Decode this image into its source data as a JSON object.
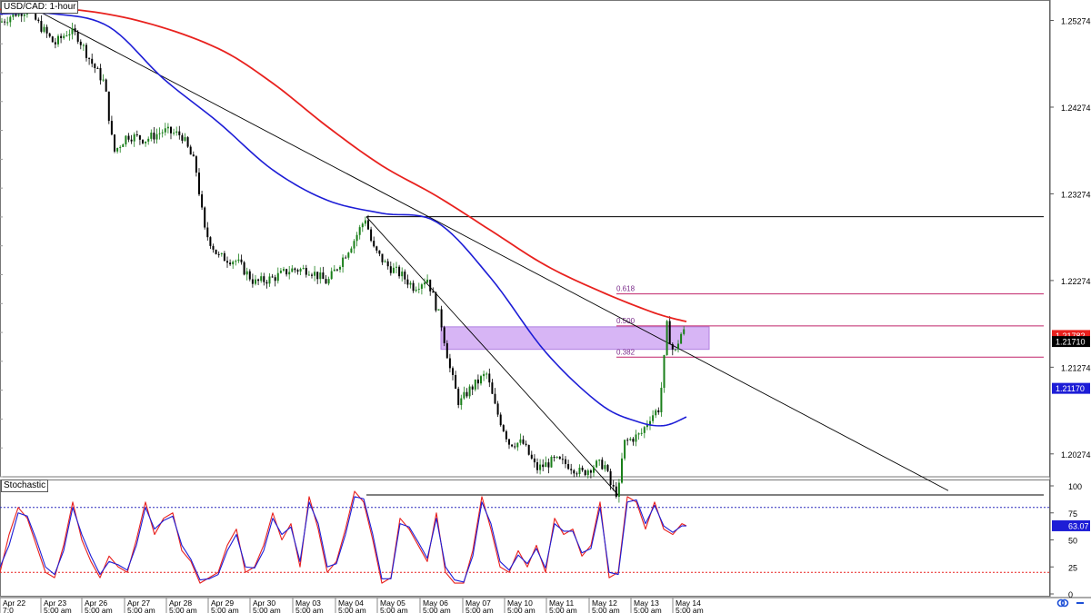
{
  "chart_title": "USD/CAD: 1-hour",
  "oscillator_title": "Stochastic",
  "colors": {
    "bull_candle": "#1a7f1a",
    "bear_candle": "#000000",
    "ma_fast": "#1d1dd6",
    "ma_slow": "#e8211e",
    "zone_fill": "#c99cf2",
    "fib_line": "#c0246a",
    "fib_label": "#7a2b8a",
    "stoch_k": "#e8211e",
    "stoch_d": "#1d1dd6",
    "upper_level": "#2b2bbd",
    "lower_level": "#e8211e"
  },
  "chart_data": [
    {
      "type": "candlestick",
      "title": "USD/CAD: 1-hour",
      "price_axis_ticks": [
        "1.25274",
        "1.24274",
        "1.23274",
        "1.22274",
        "1.21274",
        "1.20274"
      ],
      "ylim": [
        1.2001,
        1.2551
      ],
      "x_date_labels": [
        "Apr 22",
        "Apr 23",
        "Apr 26",
        "Apr 27",
        "Apr 28",
        "Apr 29",
        "Apr 30",
        "May 03",
        "May 04",
        "May 05",
        "May 06",
        "May 07",
        "May 10",
        "May 11",
        "May 12",
        "May 13",
        "May 14"
      ],
      "x_time_labels": [
        "7:0",
        "5:00 am",
        "5:00 am",
        "5:00 am",
        "5:00 am",
        "5:00 am",
        "5:00 am",
        "5:00 am",
        "5:00 am",
        "5:00 am",
        "5:00 am",
        "5:00 am",
        "5:00 am",
        "5:00 am",
        "5:00 am",
        "5:00 am",
        "5:00 am"
      ],
      "price_path": [
        [
          0,
          1.2525
        ],
        [
          15,
          1.2535
        ],
        [
          30,
          1.254
        ],
        [
          45,
          1.252
        ],
        [
          60,
          1.25
        ],
        [
          75,
          1.2515
        ],
        [
          85,
          1.251
        ],
        [
          100,
          1.248
        ],
        [
          115,
          1.2455
        ],
        [
          125,
          1.2375
        ],
        [
          140,
          1.2395
        ],
        [
          160,
          1.239
        ],
        [
          180,
          1.24
        ],
        [
          200,
          1.2395
        ],
        [
          215,
          1.236
        ],
        [
          225,
          1.2285
        ],
        [
          240,
          1.2255
        ],
        [
          260,
          1.225
        ],
        [
          280,
          1.2225
        ],
        [
          300,
          1.223
        ],
        [
          320,
          1.224
        ],
        [
          340,
          1.224
        ],
        [
          360,
          1.2225
        ],
        [
          375,
          1.225
        ],
        [
          390,
          1.2275
        ],
        [
          402,
          1.23
        ],
        [
          410,
          1.2265
        ],
        [
          425,
          1.2245
        ],
        [
          440,
          1.2235
        ],
        [
          455,
          1.222
        ],
        [
          470,
          1.223
        ],
        [
          485,
          1.218
        ],
        [
          495,
          1.2125
        ],
        [
          505,
          1.2085
        ],
        [
          515,
          1.21
        ],
        [
          525,
          1.211
        ],
        [
          535,
          1.212
        ],
        [
          545,
          1.208
        ],
        [
          560,
          1.204
        ],
        [
          575,
          1.204
        ],
        [
          590,
          1.201
        ],
        [
          610,
          1.202
        ],
        [
          625,
          1.2015
        ],
        [
          640,
          1.2005
        ],
        [
          655,
          1.2015
        ],
        [
          665,
          1.2015
        ],
        [
          672,
          1.199
        ],
        [
          680,
          1.198
        ],
        [
          686,
          1.204
        ],
        [
          695,
          1.2045
        ],
        [
          705,
          1.205
        ],
        [
          715,
          1.207
        ],
        [
          725,
          1.208
        ],
        [
          730,
          1.213
        ],
        [
          734,
          1.218
        ],
        [
          738,
          1.215
        ],
        [
          743,
          1.2145
        ],
        [
          748,
          1.2165
        ],
        [
          755,
          1.217
        ]
      ],
      "ma_fast_path": [
        [
          0,
          1.2535
        ],
        [
          60,
          1.2535
        ],
        [
          120,
          1.252
        ],
        [
          180,
          1.246
        ],
        [
          240,
          1.241
        ],
        [
          300,
          1.2355
        ],
        [
          360,
          1.232
        ],
        [
          420,
          1.2305
        ],
        [
          480,
          1.2295
        ],
        [
          540,
          1.223
        ],
        [
          600,
          1.2145
        ],
        [
          660,
          1.2085
        ],
        [
          700,
          1.2065
        ],
        [
          730,
          1.206
        ],
        [
          755,
          1.207
        ]
      ],
      "ma_slow_path": [
        [
          0,
          1.254
        ],
        [
          80,
          1.254
        ],
        [
          160,
          1.2525
        ],
        [
          240,
          1.2495
        ],
        [
          300,
          1.2455
        ],
        [
          360,
          1.2405
        ],
        [
          420,
          1.236
        ],
        [
          480,
          1.2325
        ],
        [
          540,
          1.2285
        ],
        [
          600,
          1.2245
        ],
        [
          660,
          1.2215
        ],
        [
          720,
          1.219
        ],
        [
          755,
          1.218
        ]
      ],
      "trendlines": [
        {
          "from": [
            30,
            1.2545
          ],
          "to": [
            1043,
            1.1985
          ]
        },
        {
          "from": [
            403,
            1.2301
          ],
          "to": [
            680,
            1.198
          ]
        }
      ],
      "horizontal_levels": [
        {
          "price": 1.2301,
          "x_from": 403,
          "x_to": 1148
        },
        {
          "price": 1.198,
          "x_from": 403,
          "x_to": 1148
        }
      ],
      "resistance_zone": {
        "x_from": 485,
        "x_to": 780,
        "price_top": 1.2174,
        "price_bottom": 1.2148
      },
      "fib_levels": [
        {
          "label": "0.618",
          "price": 1.2212,
          "x_from": 678,
          "x_to": 1148
        },
        {
          "label": "0.500",
          "price": 1.2175,
          "x_from": 678,
          "x_to": 1148
        },
        {
          "label": "0.382",
          "price": 1.2139,
          "x_from": 678,
          "x_to": 1148
        }
      ],
      "price_markers": [
        {
          "label": "1.21782",
          "price": 1.2164,
          "bg": "#e8211e",
          "fg": "#ffffff"
        },
        {
          "label": "1.21710",
          "price": 1.2157,
          "bg": "#000000",
          "fg": "#ffffff"
        },
        {
          "label": "1.21170",
          "price": 1.2103,
          "bg": "#1d1dd6",
          "fg": "#ffffff"
        }
      ]
    },
    {
      "type": "line",
      "title": "Stochastic",
      "ylim": [
        0,
        100
      ],
      "y_ticks": [
        "100",
        "75",
        "50",
        "25",
        "0"
      ],
      "upper_level": 80,
      "lower_level": 20,
      "current_value_label": "63.07",
      "current_value": 63.07,
      "k_path": [
        [
          0,
          20
        ],
        [
          10,
          55
        ],
        [
          20,
          80
        ],
        [
          30,
          70
        ],
        [
          40,
          45
        ],
        [
          50,
          20
        ],
        [
          60,
          15
        ],
        [
          70,
          45
        ],
        [
          80,
          85
        ],
        [
          90,
          50
        ],
        [
          100,
          30
        ],
        [
          110,
          15
        ],
        [
          120,
          35
        ],
        [
          130,
          25
        ],
        [
          140,
          20
        ],
        [
          150,
          50
        ],
        [
          160,
          85
        ],
        [
          170,
          55
        ],
        [
          180,
          70
        ],
        [
          190,
          75
        ],
        [
          200,
          40
        ],
        [
          210,
          30
        ],
        [
          220,
          10
        ],
        [
          230,
          15
        ],
        [
          240,
          20
        ],
        [
          250,
          45
        ],
        [
          260,
          60
        ],
        [
          270,
          20
        ],
        [
          280,
          25
        ],
        [
          290,
          45
        ],
        [
          300,
          75
        ],
        [
          310,
          50
        ],
        [
          320,
          65
        ],
        [
          330,
          25
        ],
        [
          340,
          90
        ],
        [
          350,
          60
        ],
        [
          360,
          20
        ],
        [
          370,
          30
        ],
        [
          380,
          60
        ],
        [
          390,
          95
        ],
        [
          400,
          85
        ],
        [
          410,
          50
        ],
        [
          420,
          10
        ],
        [
          430,
          15
        ],
        [
          440,
          70
        ],
        [
          450,
          60
        ],
        [
          460,
          45
        ],
        [
          470,
          30
        ],
        [
          480,
          75
        ],
        [
          490,
          20
        ],
        [
          500,
          10
        ],
        [
          510,
          10
        ],
        [
          520,
          40
        ],
        [
          530,
          90
        ],
        [
          540,
          60
        ],
        [
          550,
          25
        ],
        [
          560,
          20
        ],
        [
          570,
          40
        ],
        [
          580,
          25
        ],
        [
          590,
          45
        ],
        [
          600,
          20
        ],
        [
          610,
          70
        ],
        [
          620,
          55
        ],
        [
          630,
          60
        ],
        [
          640,
          35
        ],
        [
          650,
          45
        ],
        [
          660,
          85
        ],
        [
          670,
          15
        ],
        [
          680,
          20
        ],
        [
          690,
          90
        ],
        [
          700,
          85
        ],
        [
          710,
          60
        ],
        [
          720,
          85
        ],
        [
          730,
          60
        ],
        [
          740,
          55
        ],
        [
          750,
          65
        ],
        [
          755,
          63
        ]
      ],
      "d_path": [
        [
          0,
          25
        ],
        [
          10,
          45
        ],
        [
          20,
          75
        ],
        [
          30,
          72
        ],
        [
          40,
          50
        ],
        [
          50,
          25
        ],
        [
          60,
          18
        ],
        [
          70,
          40
        ],
        [
          80,
          80
        ],
        [
          90,
          55
        ],
        [
          100,
          35
        ],
        [
          110,
          18
        ],
        [
          120,
          30
        ],
        [
          130,
          27
        ],
        [
          140,
          22
        ],
        [
          150,
          45
        ],
        [
          160,
          80
        ],
        [
          170,
          60
        ],
        [
          180,
          68
        ],
        [
          190,
          72
        ],
        [
          200,
          45
        ],
        [
          210,
          32
        ],
        [
          220,
          13
        ],
        [
          230,
          14
        ],
        [
          240,
          18
        ],
        [
          250,
          40
        ],
        [
          260,
          55
        ],
        [
          270,
          25
        ],
        [
          280,
          24
        ],
        [
          290,
          40
        ],
        [
          300,
          70
        ],
        [
          310,
          55
        ],
        [
          320,
          62
        ],
        [
          330,
          30
        ],
        [
          340,
          85
        ],
        [
          350,
          65
        ],
        [
          360,
          25
        ],
        [
          370,
          28
        ],
        [
          380,
          55
        ],
        [
          390,
          90
        ],
        [
          400,
          88
        ],
        [
          410,
          55
        ],
        [
          420,
          14
        ],
        [
          430,
          14
        ],
        [
          440,
          65
        ],
        [
          450,
          62
        ],
        [
          460,
          48
        ],
        [
          470,
          33
        ],
        [
          480,
          70
        ],
        [
          490,
          25
        ],
        [
          500,
          13
        ],
        [
          510,
          11
        ],
        [
          520,
          35
        ],
        [
          530,
          85
        ],
        [
          540,
          65
        ],
        [
          550,
          30
        ],
        [
          560,
          22
        ],
        [
          570,
          36
        ],
        [
          580,
          28
        ],
        [
          590,
          42
        ],
        [
          600,
          24
        ],
        [
          610,
          65
        ],
        [
          620,
          58
        ],
        [
          630,
          58
        ],
        [
          640,
          38
        ],
        [
          650,
          42
        ],
        [
          660,
          80
        ],
        [
          670,
          20
        ],
        [
          680,
          18
        ],
        [
          690,
          85
        ],
        [
          700,
          87
        ],
        [
          710,
          65
        ],
        [
          720,
          82
        ],
        [
          730,
          63
        ],
        [
          740,
          57
        ],
        [
          750,
          63
        ],
        [
          755,
          63
        ]
      ]
    }
  ]
}
